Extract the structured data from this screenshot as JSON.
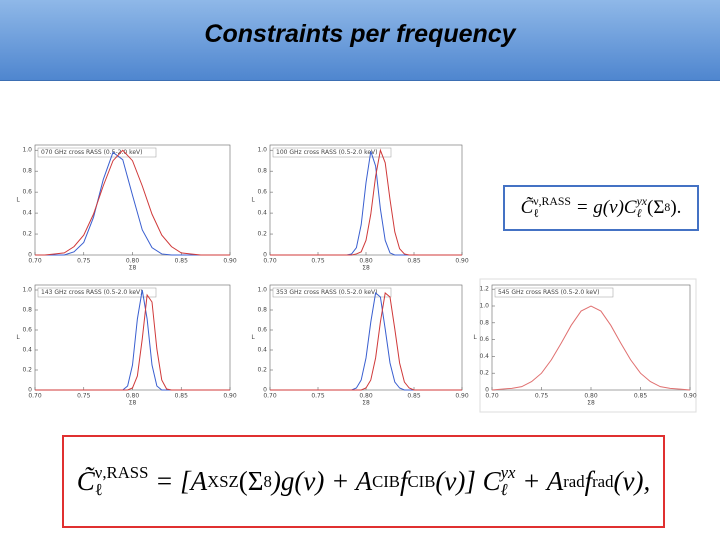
{
  "header": {
    "title": "Constraints per frequency"
  },
  "formulas": [
    [
      "C̃",
      "ν,RASS",
      "ℓ",
      "= g(ν)C",
      "yx",
      "ℓ",
      "(Σ",
      "8",
      ")."
    ],
    [
      "C̃",
      "ν,RASS",
      "ℓ",
      "= [A",
      "XSZ",
      "(Σ",
      "8",
      ")g(ν) + A",
      "CIB",
      " f",
      "CIB",
      "(ν)] C",
      "yx",
      "ℓ",
      "+ A",
      "rad",
      " f",
      "rad",
      "(ν),"
    ]
  ],
  "chart_data": [
    {
      "type": "line",
      "title": "070 GHz cross RASS (0.5-2.0 keV)",
      "xlabel": "Σ8",
      "ylabel": "L",
      "x": [
        0.7,
        0.71,
        0.72,
        0.73,
        0.74,
        0.75,
        0.76,
        0.77,
        0.78,
        0.79,
        0.8,
        0.81,
        0.82,
        0.83,
        0.84,
        0.85,
        0.86,
        0.87,
        0.88,
        0.89,
        0.9
      ],
      "series": [
        {
          "color": "#3a5fd0",
          "values": [
            0,
            0,
            0,
            0,
            0.03,
            0.12,
            0.36,
            0.72,
            0.98,
            0.91,
            0.57,
            0.24,
            0.07,
            0.01,
            0,
            0,
            0,
            0,
            0,
            0,
            0
          ]
        },
        {
          "color": "#d03a3a",
          "values": [
            0,
            0,
            0.01,
            0.02,
            0.08,
            0.19,
            0.39,
            0.66,
            0.9,
            1.0,
            0.9,
            0.66,
            0.39,
            0.19,
            0.08,
            0.02,
            0.01,
            0,
            0,
            0,
            0
          ]
        }
      ],
      "xlim": [
        0.7,
        0.9
      ],
      "xticks": [
        {
          "value": 0.7,
          "label": "0.70"
        },
        {
          "value": 0.75,
          "label": "0.75"
        },
        {
          "value": 0.8,
          "label": "0.80"
        },
        {
          "value": 0.85,
          "label": "0.85"
        },
        {
          "value": 0.9,
          "label": "0.90"
        }
      ],
      "ylim": [
        0,
        1.05
      ],
      "yticks": [
        0,
        0.2,
        0.4,
        0.6,
        0.8,
        {
          "value": 1,
          "label": "1.0"
        }
      ]
    },
    {
      "type": "line",
      "title": "100 GHz cross RASS (0.5-2.0 keV)",
      "xlabel": "Σ8",
      "ylabel": "L",
      "x": [
        0.7,
        0.78,
        0.785,
        0.79,
        0.795,
        0.8,
        0.805,
        0.81,
        0.815,
        0.82,
        0.825,
        0.83,
        0.835,
        0.84,
        0.845,
        0.85,
        0.9
      ],
      "series": [
        {
          "color": "#3a5fd0",
          "values": [
            0,
            0,
            0.01,
            0.07,
            0.29,
            0.69,
            0.99,
            0.85,
            0.44,
            0.14,
            0.02,
            0,
            0,
            0,
            0,
            0,
            0
          ]
        },
        {
          "color": "#d03a3a",
          "values": [
            0,
            0,
            0,
            0.01,
            0.03,
            0.14,
            0.39,
            0.75,
            1.0,
            0.88,
            0.53,
            0.22,
            0.06,
            0.01,
            0,
            0,
            0
          ]
        }
      ],
      "xlim": [
        0.7,
        0.9
      ],
      "xticks": [
        {
          "value": 0.7,
          "label": "0.70"
        },
        {
          "value": 0.75,
          "label": "0.75"
        },
        {
          "value": 0.8,
          "label": "0.80"
        },
        {
          "value": 0.85,
          "label": "0.85"
        },
        {
          "value": 0.9,
          "label": "0.90"
        }
      ],
      "ylim": [
        0,
        1.05
      ],
      "yticks": [
        0,
        0.2,
        0.4,
        0.6,
        0.8,
        {
          "value": 1,
          "label": "1.0"
        }
      ]
    },
    {
      "type": "line",
      "title": "143 GHz cross RASS (0.5-2.0 keV)",
      "xlabel": "Σ8",
      "ylabel": "L",
      "x": [
        0.7,
        0.78,
        0.785,
        0.79,
        0.795,
        0.8,
        0.805,
        0.81,
        0.815,
        0.82,
        0.825,
        0.83,
        0.835,
        0.84,
        0.845,
        0.85,
        0.9
      ],
      "series": [
        {
          "color": "#3a5fd0",
          "values": [
            0,
            0,
            0,
            0,
            0.04,
            0.25,
            0.71,
            1.0,
            0.71,
            0.25,
            0.04,
            0,
            0,
            0,
            0,
            0,
            0
          ]
        },
        {
          "color": "#d03a3a",
          "values": [
            0,
            0,
            0,
            0,
            0,
            0.02,
            0.14,
            0.51,
            0.95,
            0.88,
            0.41,
            0.1,
            0.01,
            0,
            0,
            0,
            0
          ]
        }
      ],
      "xlim": [
        0.7,
        0.9
      ],
      "xticks": [
        {
          "value": 0.7,
          "label": "0.70"
        },
        {
          "value": 0.75,
          "label": "0.75"
        },
        {
          "value": 0.8,
          "label": "0.80"
        },
        {
          "value": 0.85,
          "label": "0.85"
        },
        {
          "value": 0.9,
          "label": "0.90"
        }
      ],
      "ylim": [
        0,
        1.05
      ],
      "yticks": [
        0,
        0.2,
        0.4,
        0.6,
        0.8,
        {
          "value": 1,
          "label": "1.0"
        }
      ]
    },
    {
      "type": "line",
      "title": "353 GHz cross RASS (0.5-2.0 keV)",
      "xlabel": "Σ8",
      "ylabel": "L",
      "x": [
        0.7,
        0.78,
        0.785,
        0.79,
        0.795,
        0.8,
        0.805,
        0.81,
        0.815,
        0.82,
        0.825,
        0.83,
        0.835,
        0.84,
        0.845,
        0.85,
        0.9
      ],
      "series": [
        {
          "color": "#3a5fd0",
          "values": [
            0,
            0,
            0,
            0.02,
            0.1,
            0.32,
            0.68,
            0.97,
            0.93,
            0.61,
            0.27,
            0.08,
            0.02,
            0,
            0,
            0,
            0
          ]
        },
        {
          "color": "#d03a3a",
          "values": [
            0,
            0,
            0,
            0,
            0,
            0.02,
            0.1,
            0.32,
            0.68,
            0.97,
            0.93,
            0.61,
            0.27,
            0.08,
            0.02,
            0,
            0
          ]
        }
      ],
      "xlim": [
        0.7,
        0.9
      ],
      "xticks": [
        {
          "value": 0.7,
          "label": "0.70"
        },
        {
          "value": 0.75,
          "label": "0.75"
        },
        {
          "value": 0.8,
          "label": "0.80"
        },
        {
          "value": 0.85,
          "label": "0.85"
        },
        {
          "value": 0.9,
          "label": "0.90"
        }
      ],
      "ylim": [
        0,
        1.05
      ],
      "yticks": [
        0,
        0.2,
        0.4,
        0.6,
        0.8,
        {
          "value": 1,
          "label": "1.0"
        }
      ]
    },
    {
      "type": "line",
      "title": "545 GHz cross RASS (0.5-2.0 keV)",
      "xlabel": "Σ8",
      "ylabel": "L",
      "x": [
        0.7,
        0.71,
        0.72,
        0.73,
        0.74,
        0.75,
        0.76,
        0.77,
        0.78,
        0.79,
        0.8,
        0.81,
        0.82,
        0.83,
        0.84,
        0.85,
        0.86,
        0.87,
        0.88,
        0.89,
        0.9
      ],
      "series": [
        {
          "color": "#e07070",
          "values": [
            0,
            0.01,
            0.02,
            0.04,
            0.1,
            0.2,
            0.36,
            0.56,
            0.77,
            0.94,
            1.0,
            0.94,
            0.77,
            0.56,
            0.36,
            0.2,
            0.1,
            0.04,
            0.02,
            0.01,
            0
          ]
        }
      ],
      "xlim": [
        0.7,
        0.9
      ],
      "xticks": [
        {
          "value": 0.7,
          "label": "0.70"
        },
        {
          "value": 0.75,
          "label": "0.75"
        },
        {
          "value": 0.8,
          "label": "0.80"
        },
        {
          "value": 0.85,
          "label": "0.85"
        },
        {
          "value": 0.9,
          "label": "0.90"
        }
      ],
      "ylim": [
        0,
        1.25
      ],
      "yticks": [
        0,
        0.2,
        0.4,
        0.6,
        0.8,
        {
          "value": 1,
          "label": "1.0"
        },
        1.2
      ]
    }
  ]
}
